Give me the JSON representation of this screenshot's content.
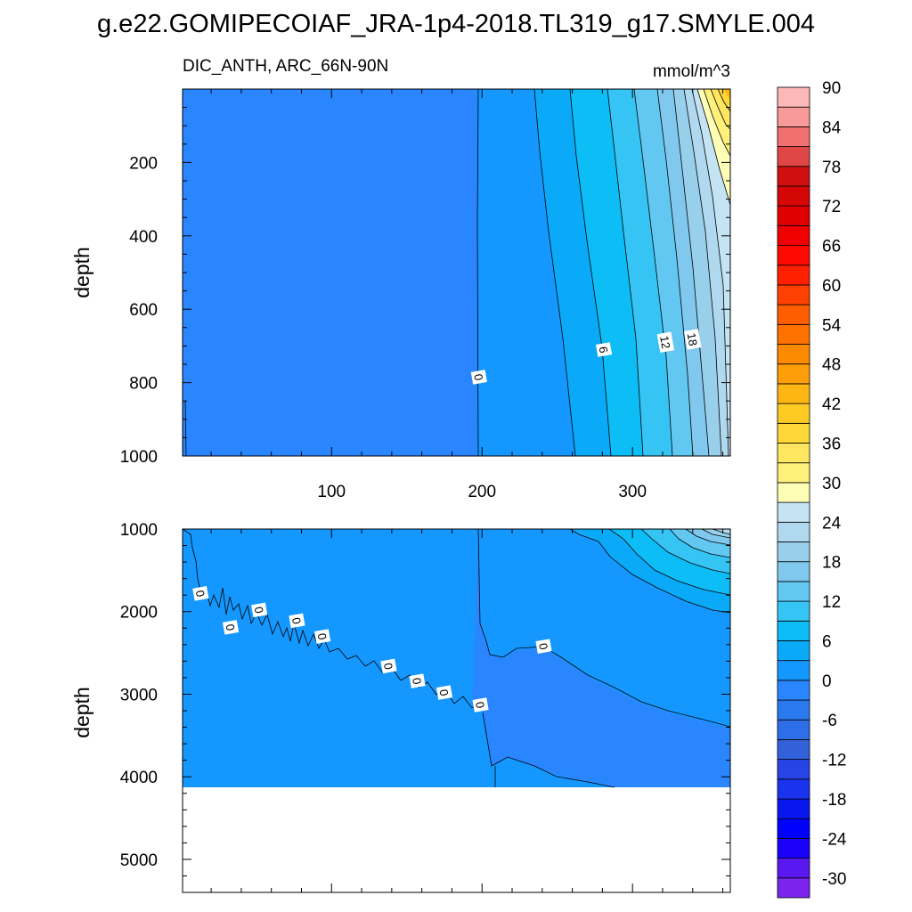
{
  "title": "g.e22.GOMIPECOIAF_JRA-1p4-2018.TL319_g17.SMYLE.004",
  "chart_data": {
    "type": "heatmap",
    "variable_label": "DIC_ANTH, ARC_66N-90N",
    "units": "mmol/m^3",
    "x_ticks": [
      100,
      200,
      300
    ],
    "x_range": [
      1,
      365
    ],
    "colorbar": {
      "levels": [
        -30,
        -27,
        -24,
        -21,
        -18,
        -15,
        -12,
        -9,
        -6,
        -3,
        0,
        3,
        6,
        9,
        12,
        15,
        18,
        21,
        24,
        27,
        30,
        33,
        36,
        39,
        42,
        45,
        48,
        51,
        54,
        57,
        60,
        63,
        66,
        69,
        72,
        75,
        78,
        81,
        84,
        87,
        90
      ],
      "tick_labels": [
        "-30",
        "-24",
        "-18",
        "-12",
        "-6",
        "0",
        "6",
        "12",
        "18",
        "24",
        "30",
        "36",
        "42",
        "48",
        "54",
        "60",
        "66",
        "72",
        "78",
        "84",
        "90"
      ],
      "colors": [
        "#7a24ee",
        "#5a18f0",
        "#1a00f8",
        "#0000ff",
        "#0a16f0",
        "#1a33ee",
        "#2844e6",
        "#3160d8",
        "#2e6ee6",
        "#2a7aee",
        "#2a86ff",
        "#1498ff",
        "#0aaaf8",
        "#0cbdf6",
        "#36c4f4",
        "#62c8f2",
        "#80c8ee",
        "#98d0ec",
        "#b0d8ee",
        "#c4e4f4",
        "#fefeb6",
        "#fef07a",
        "#fee660",
        "#fed838",
        "#feca24",
        "#feb612",
        "#fe9e08",
        "#fe8a02",
        "#fe7200",
        "#fe5e00",
        "#fe4000",
        "#fe2000",
        "#fe0a00",
        "#f00000",
        "#e00000",
        "#d40606",
        "#d01010",
        "#e04646",
        "#f27070",
        "#f89a9a",
        "#fcb8b8"
      ]
    },
    "upper_panel": {
      "ylabel": "depth",
      "ylim": [
        0,
        1000
      ],
      "y_ticks": [
        200,
        400,
        600,
        800,
        1000
      ],
      "x_ticks": [
        100,
        200,
        300
      ],
      "tick_labels": [
        "100",
        "200",
        "300"
      ],
      "contour_labels": [
        {
          "value": "0",
          "x": 198,
          "depth": 785
        },
        {
          "value": "6",
          "x": 281,
          "depth": 710
        },
        {
          "value": "12",
          "x": 322,
          "depth": 690
        },
        {
          "value": "18",
          "x": 340,
          "depth": 682
        }
      ]
    },
    "lower_panel": {
      "ylabel": "depth",
      "ylim": [
        1000,
        5400
      ],
      "y_ticks": [
        1000,
        2000,
        3000,
        4000,
        5000
      ],
      "ocean_bottom_depth": 4100,
      "contour_labels": [
        {
          "value": "0",
          "x": 13,
          "depth": 1780
        },
        {
          "value": "0",
          "x": 33,
          "depth": 2190
        },
        {
          "value": "0",
          "x": 52,
          "depth": 1980
        },
        {
          "value": "0",
          "x": 77,
          "depth": 2110
        },
        {
          "value": "0",
          "x": 94,
          "depth": 2300
        },
        {
          "value": "0",
          "x": 138,
          "depth": 2660
        },
        {
          "value": "0",
          "x": 157,
          "depth": 2840
        },
        {
          "value": "0",
          "x": 175,
          "depth": 2980
        },
        {
          "value": "0",
          "x": 199,
          "depth": 3130
        },
        {
          "value": "0",
          "x": 241,
          "depth": 2420
        }
      ]
    }
  }
}
